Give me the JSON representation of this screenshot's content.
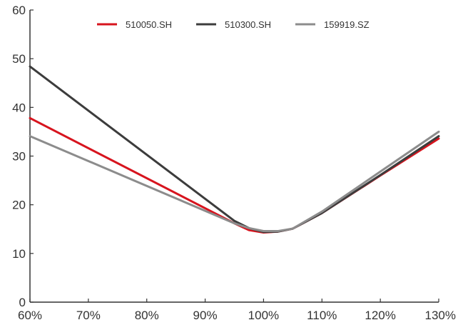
{
  "chart_data": {
    "type": "line",
    "title": "",
    "xlabel": "",
    "ylabel": "",
    "x": [
      60,
      95,
      97.5,
      100,
      102.5,
      105,
      110,
      120,
      130
    ],
    "x_tick_labels": [
      "60%",
      "70%",
      "80%",
      "90%",
      "100%",
      "110%",
      "120%",
      "130%"
    ],
    "x_ticks": [
      60,
      70,
      80,
      90,
      100,
      110,
      120,
      130
    ],
    "xlim": [
      60,
      130
    ],
    "y_ticks": [
      0,
      10,
      20,
      30,
      40,
      50,
      60
    ],
    "y_tick_labels": [
      "0",
      "10",
      "20",
      "30",
      "40",
      "50",
      "60"
    ],
    "ylim": [
      0,
      60
    ],
    "grid": false,
    "legend_position": "top-center",
    "series": [
      {
        "name": "510050.SH",
        "color": "#d7141e",
        "values": [
          37.8,
          16.2,
          14.8,
          14.3,
          14.5,
          15.1,
          18.3,
          26.0,
          33.6
        ]
      },
      {
        "name": "510300.SH",
        "color": "#3c3c3c",
        "values": [
          48.4,
          16.7,
          15.2,
          14.4,
          14.5,
          15.1,
          18.3,
          26.1,
          34.1
        ]
      },
      {
        "name": "159919.SZ",
        "color": "#8c8c8c",
        "values": [
          34.1,
          16.2,
          15.2,
          14.6,
          14.6,
          15.1,
          18.6,
          26.8,
          35.0
        ]
      }
    ]
  }
}
